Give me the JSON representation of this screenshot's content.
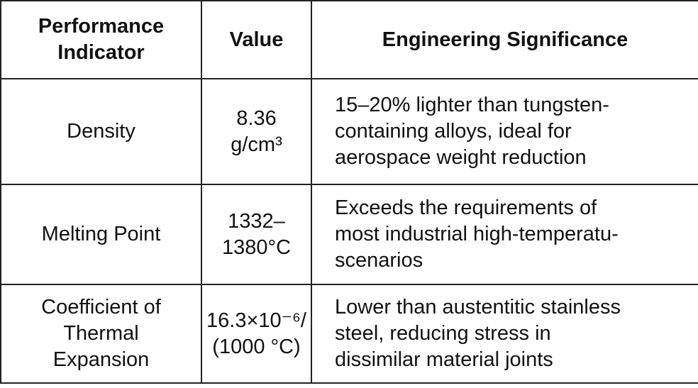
{
  "table": {
    "header": [
      [
        "Performance",
        "Indicator"
      ],
      [
        "Value"
      ],
      [
        "Engineering Significance"
      ]
    ],
    "rows": [
      [
        [
          "Density"
        ],
        [
          "8.36",
          "g/cm³"
        ],
        [
          "15–20% lighter than tungsten-",
          "containing alloys, ideal for",
          "aerospace weight reduction"
        ]
      ],
      [
        [
          "Melting Point"
        ],
        [
          "1332–",
          "1380°C"
        ],
        [
          "Exceeds the requirements of",
          "most industrial high-temperatu-",
          "scenarios"
        ]
      ],
      [
        [
          "Coefficient of",
          "Thermal",
          "Expansion"
        ],
        [
          "16.3×10⁻⁶/",
          "(1000 °C)"
        ],
        [
          "Lower than austentitic stainless",
          "steel, reducing stress in",
          "dissimilar material joints"
        ]
      ]
    ]
  }
}
